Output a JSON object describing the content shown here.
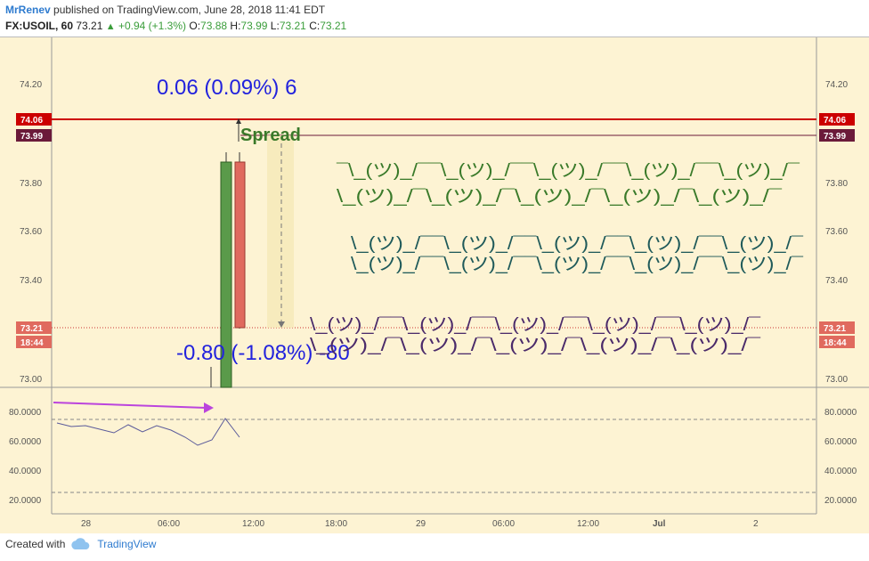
{
  "header": {
    "author": "MrRenev",
    "published": "published on TradingView.com, June 28, 2018 11:41 EDT",
    "symbol": "FX:USOIL, 60",
    "last": "73.21",
    "change": "+0.94 (+1.3%)",
    "o_label": "O:",
    "o_value": "73.88",
    "h_label": "H:",
    "h_value": "73.99",
    "l_label": "L:",
    "l_value": "73.21",
    "c_label": "C:",
    "c_value": "73.21"
  },
  "price_axis": {
    "ticks": [
      "74.20",
      "73.80",
      "73.60",
      "73.40",
      "73.00"
    ],
    "tag_red": "74.06",
    "tag_maroon": "73.99",
    "tag_last": "73.21",
    "tag_time": "18:44"
  },
  "indicator_axis": {
    "ticks": [
      "80.0000",
      "60.0000",
      "40.0000",
      "20.0000"
    ]
  },
  "time_axis": {
    "labels": [
      "28",
      "06:00",
      "12:00",
      "18:00",
      "29",
      "06:00",
      "12:00",
      "Jul",
      "2"
    ]
  },
  "annotations": {
    "measure_top": "0.06 (0.09%) 6",
    "measure_bottom": "-0.80 (-1.08%) -80",
    "spread_label": "Spread",
    "shrug_green_1": "¯\\_(ツ)_/¯¯\\_(ツ)_/¯¯\\_(ツ)_/¯¯\\_(ツ)_/¯¯\\_(ツ)_/¯",
    "shrug_green_2": "\\_(ツ)_/¯\\_(ツ)_/¯\\_(ツ)_/¯\\_(ツ)_/¯\\_(ツ)_/¯",
    "shrug_teal_1": "\\_(ツ)_/¯¯\\_(ツ)_/¯¯\\_(ツ)_/¯¯\\_(ツ)_/¯¯\\_(ツ)_/¯",
    "shrug_teal_2": "\\_(ツ)_/¯¯\\_(ツ)_/¯¯\\_(ツ)_/¯¯\\_(ツ)_/¯¯\\_(ツ)_/¯",
    "shrug_purple_1": "\\_(ツ)_/¯¯\\_(ツ)_/¯¯\\_(ツ)_/¯¯\\_(ツ)_/¯¯\\_(ツ)_/¯",
    "shrug_purple_2": "\\_(ツ)_/¯\\_(ツ)_/¯\\_(ツ)_/¯\\_(ツ)_/¯\\_(ツ)_/¯"
  },
  "colors": {
    "background": "#fdf3d3",
    "up_candle": "#5a9a4a",
    "down_candle": "#e06a5e",
    "red_line": "#cc0000",
    "maroon_tag": "#6b1a3a",
    "measure_text": "#2222dd",
    "spread_text": "#3a7a2a",
    "shrug_green": "#3a7a2a",
    "shrug_teal": "#1f5a5a",
    "shrug_purple": "#4a2a6a",
    "arrow": "#bb44dd"
  },
  "footer": {
    "created_with": "Created with",
    "brand": "TradingView"
  }
}
